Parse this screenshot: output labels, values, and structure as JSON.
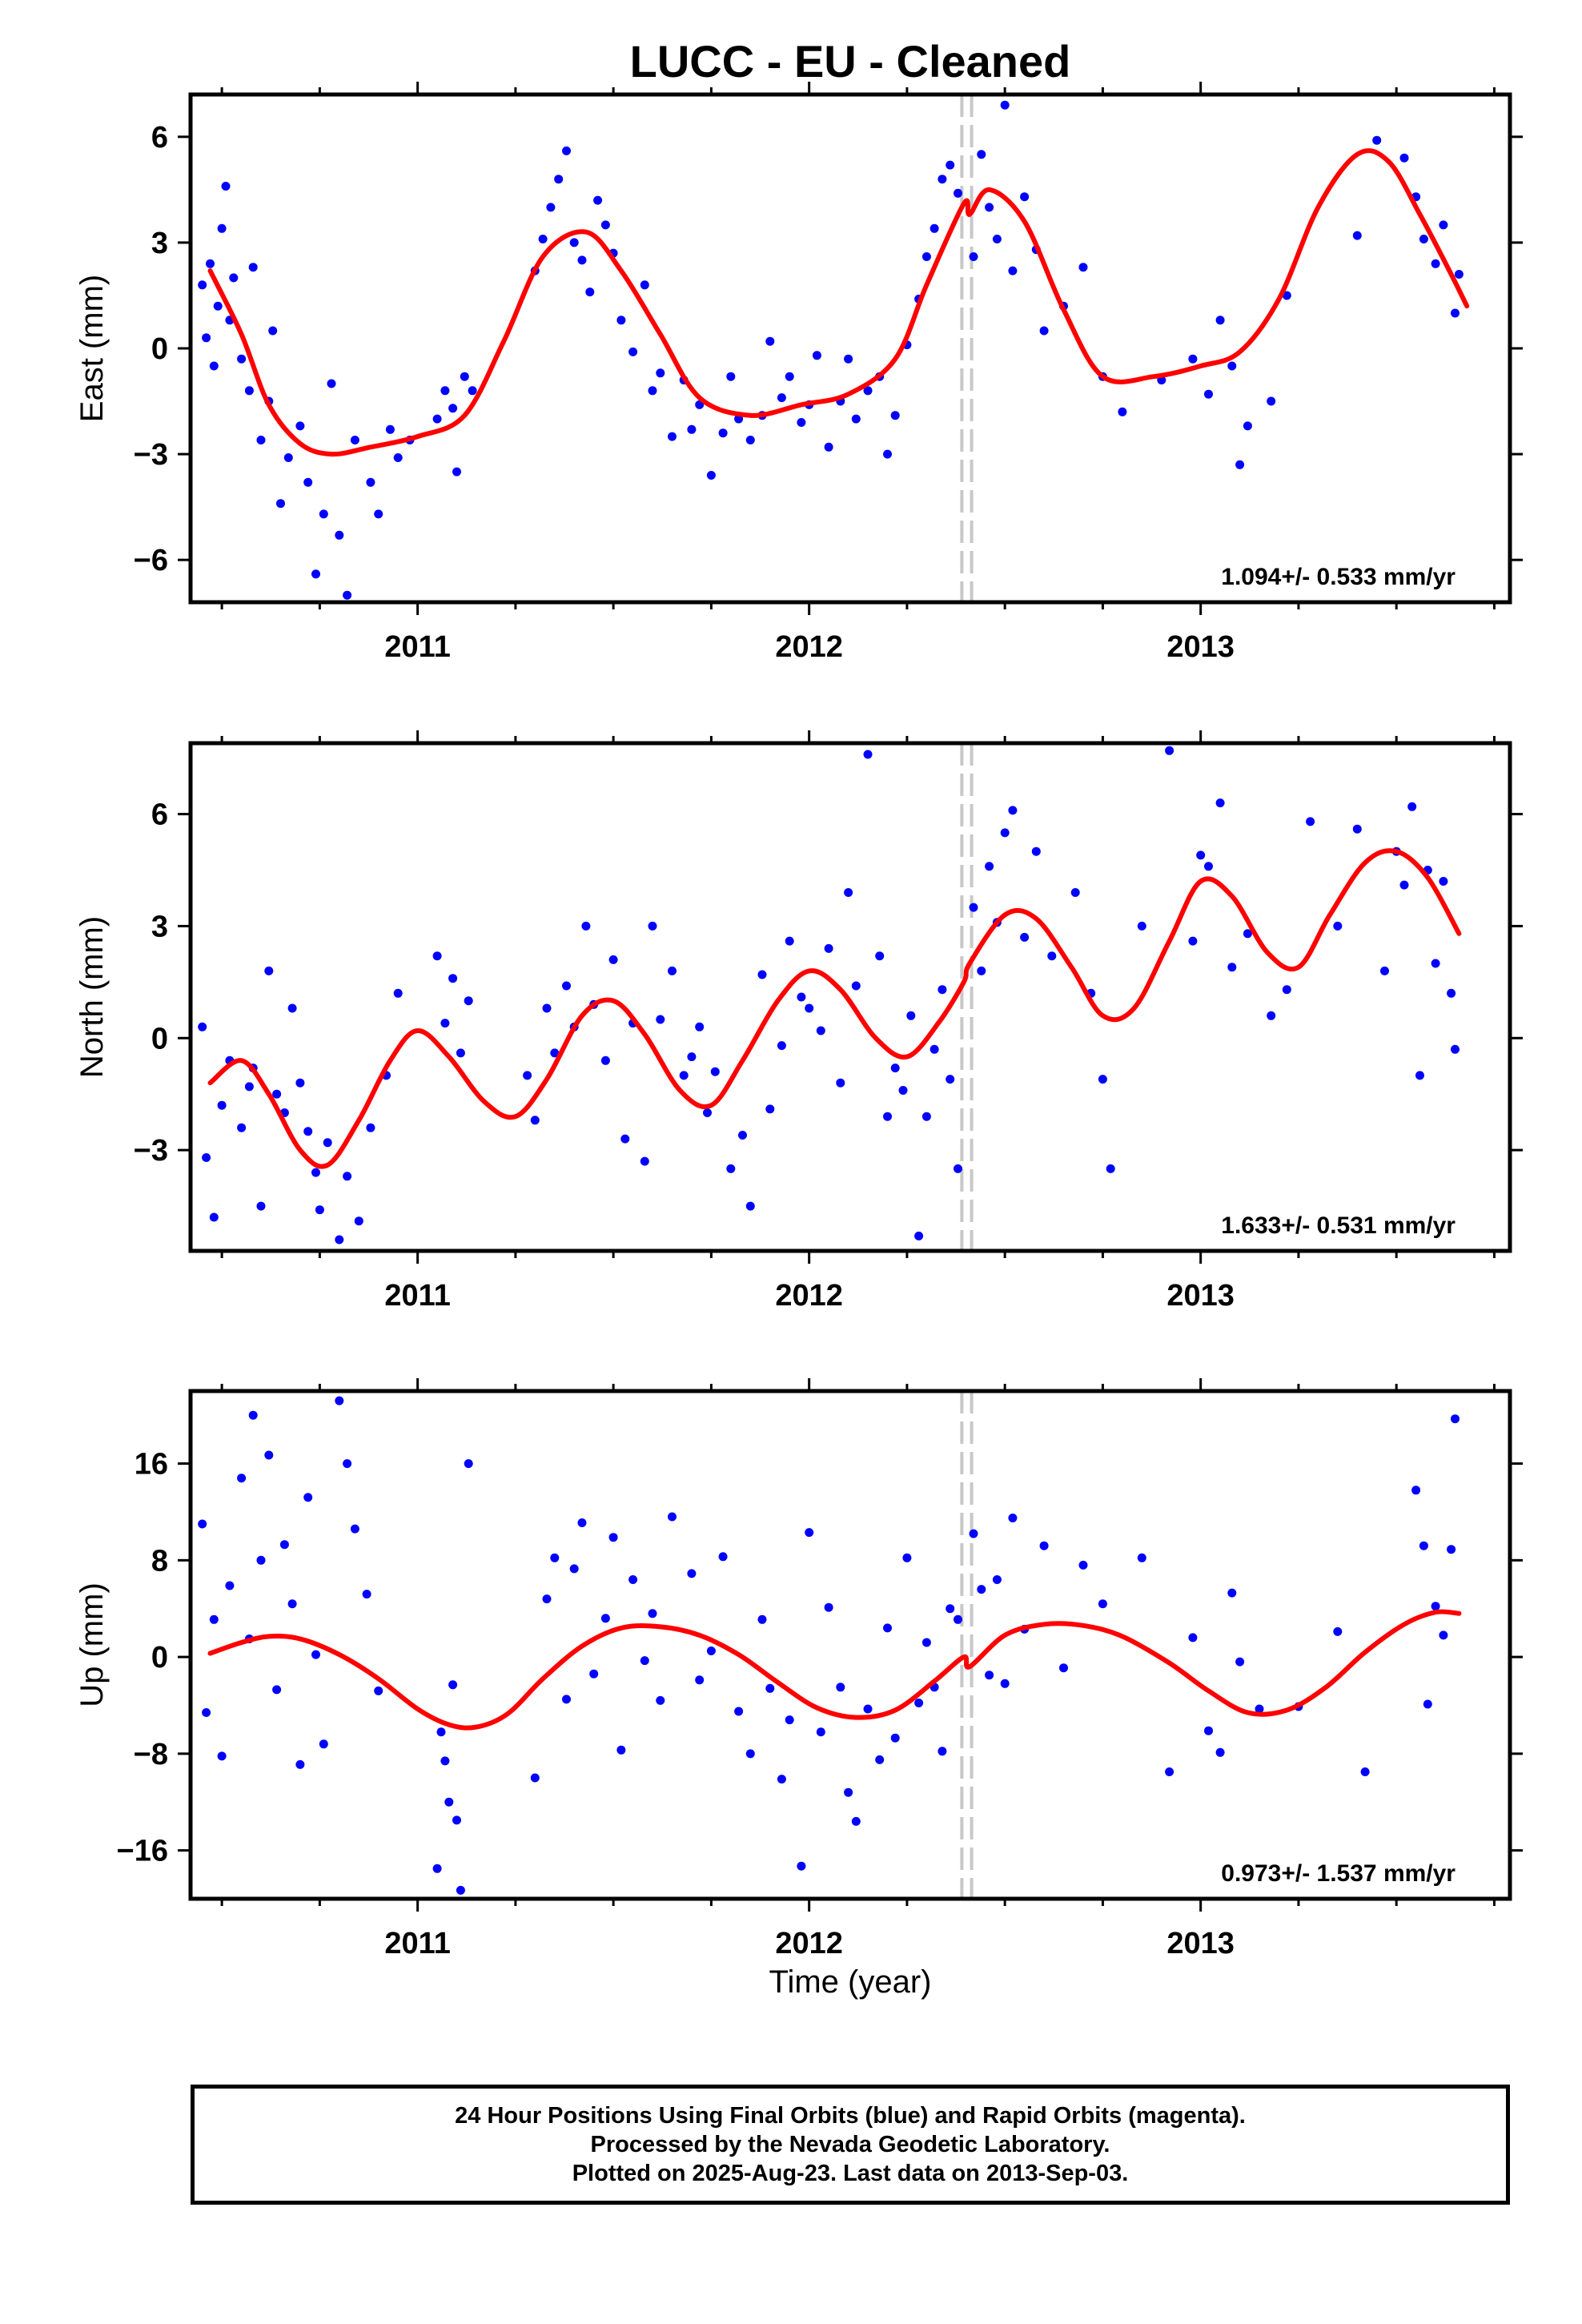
{
  "title": "LUCC  - EU - Cleaned",
  "xlabel": "Time (year)",
  "x_ticks": [
    "2011",
    "2012",
    "2013"
  ],
  "caption": {
    "line1": "24 Hour Positions Using Final Orbits (blue) and Rapid Orbits (magenta).",
    "line2": "Processed by the Nevada Geodetic Laboratory.",
    "line3": "Plotted on 2025-Aug-23. Last data on 2013-Sep-03."
  },
  "colors": {
    "points": "#0000ff",
    "fit": "#ff0000",
    "offset_lines": "#c8c8c8",
    "frame": "#000000"
  },
  "chart_data": [
    {
      "type": "scatter",
      "ylabel": "East (mm)",
      "xlim": [
        2010.42,
        2013.79
      ],
      "ylim": [
        -7.2,
        7.2
      ],
      "yticks": [
        -6,
        -3,
        0,
        3,
        6
      ],
      "rate_label": "1.094+/- 0.533 mm/yr",
      "offset_epochs": [
        2012.39,
        2012.415
      ],
      "fit": {
        "x": [
          2010.47,
          2010.55,
          2010.62,
          2010.7,
          2010.78,
          2010.88,
          2011.0,
          2011.12,
          2011.22,
          2011.32,
          2011.43,
          2011.52,
          2011.62,
          2011.72,
          2011.85,
          2011.98,
          2012.1,
          2012.22,
          2012.3,
          2012.395,
          2012.41,
          2012.46,
          2012.55,
          2012.65,
          2012.75,
          2012.88,
          2013.0,
          2013.1,
          2013.2,
          2013.3,
          2013.4,
          2013.48,
          2013.56,
          2013.64,
          2013.68
        ],
        "y": [
          2.2,
          0.4,
          -1.6,
          -2.7,
          -3.0,
          -2.8,
          -2.5,
          -1.9,
          0.2,
          2.6,
          3.3,
          2.2,
          0.4,
          -1.4,
          -1.9,
          -1.6,
          -1.3,
          -0.3,
          1.8,
          4.1,
          3.8,
          4.5,
          3.6,
          1.1,
          -0.8,
          -0.8,
          -0.5,
          -0.1,
          1.4,
          4.0,
          5.5,
          5.3,
          3.8,
          2.1,
          1.2
        ]
      },
      "points": {
        "x": [
          2010.45,
          2010.46,
          2010.47,
          2010.48,
          2010.49,
          2010.5,
          2010.51,
          2010.52,
          2010.53,
          2010.55,
          2010.57,
          2010.58,
          2010.6,
          2010.62,
          2010.63,
          2010.65,
          2010.67,
          2010.7,
          2010.72,
          2010.74,
          2010.76,
          2010.78,
          2010.8,
          2010.82,
          2010.84,
          2010.88,
          2010.9,
          2010.93,
          2010.95,
          2010.98,
          2011.05,
          2011.07,
          2011.09,
          2011.1,
          2011.12,
          2011.14,
          2011.3,
          2011.32,
          2011.34,
          2011.36,
          2011.38,
          2011.4,
          2011.42,
          2011.44,
          2011.46,
          2011.48,
          2011.5,
          2011.52,
          2011.55,
          2011.58,
          2011.6,
          2011.62,
          2011.65,
          2011.68,
          2011.7,
          2011.72,
          2011.75,
          2011.78,
          2011.8,
          2011.82,
          2011.85,
          2011.88,
          2011.9,
          2011.93,
          2011.95,
          2011.98,
          2012.0,
          2012.02,
          2012.05,
          2012.08,
          2012.1,
          2012.12,
          2012.15,
          2012.18,
          2012.2,
          2012.22,
          2012.25,
          2012.28,
          2012.3,
          2012.32,
          2012.34,
          2012.36,
          2012.38,
          2012.42,
          2012.44,
          2012.46,
          2012.48,
          2012.5,
          2012.52,
          2012.55,
          2012.58,
          2012.6,
          2012.65,
          2012.7,
          2012.75,
          2012.8,
          2012.9,
          2012.98,
          2013.02,
          2013.05,
          2013.08,
          2013.1,
          2013.12,
          2013.18,
          2013.22,
          2013.4,
          2013.45,
          2013.52,
          2013.55,
          2013.57,
          2013.6,
          2013.62,
          2013.65,
          2013.66
        ],
        "y": [
          1.8,
          0.3,
          2.4,
          -0.5,
          1.2,
          3.4,
          4.6,
          0.8,
          2.0,
          -0.3,
          -1.2,
          2.3,
          -2.6,
          -1.5,
          0.5,
          -4.4,
          -3.1,
          -2.2,
          -3.8,
          -6.4,
          -4.7,
          -1.0,
          -5.3,
          -7.0,
          -2.6,
          -3.8,
          -4.7,
          -2.3,
          -3.1,
          -2.6,
          -2.0,
          -1.2,
          -1.7,
          -3.5,
          -0.8,
          -1.2,
          2.2,
          3.1,
          4.0,
          4.8,
          5.6,
          3.0,
          2.5,
          1.6,
          4.2,
          3.5,
          2.7,
          0.8,
          -0.1,
          1.8,
          -1.2,
          -0.7,
          -2.5,
          -0.9,
          -2.3,
          -1.6,
          -3.6,
          -2.4,
          -0.8,
          -2.0,
          -2.6,
          -1.9,
          0.2,
          -1.4,
          -0.8,
          -2.1,
          -1.6,
          -0.2,
          -2.8,
          -1.5,
          -0.3,
          -2.0,
          -1.2,
          -0.8,
          -3.0,
          -1.9,
          0.1,
          1.4,
          2.6,
          3.4,
          4.8,
          5.2,
          4.4,
          2.6,
          5.5,
          4.0,
          3.1,
          6.9,
          2.2,
          4.3,
          2.8,
          0.5,
          1.2,
          2.3,
          -0.8,
          -1.8,
          -0.9,
          -0.3,
          -1.3,
          0.8,
          -0.5,
          -3.3,
          -2.2,
          -1.5,
          1.5,
          3.2,
          5.9,
          5.4,
          4.3,
          3.1,
          2.4,
          3.5,
          1.0,
          2.1
        ]
      }
    },
    {
      "type": "scatter",
      "ylabel": "North (mm)",
      "xlim": [
        2010.42,
        2013.79
      ],
      "ylim": [
        -5.7,
        7.9
      ],
      "yticks": [
        -3,
        0,
        3,
        6
      ],
      "rate_label": "1.633+/- 0.531 mm/yr",
      "offset_epochs": [
        2012.39,
        2012.415
      ],
      "fit": {
        "x": [
          2010.47,
          2010.55,
          2010.62,
          2010.7,
          2010.77,
          2010.85,
          2010.93,
          2011.0,
          2011.08,
          2011.17,
          2011.25,
          2011.33,
          2011.42,
          2011.5,
          2011.58,
          2011.67,
          2011.75,
          2011.83,
          2011.92,
          2012.0,
          2012.08,
          2012.17,
          2012.25,
          2012.33,
          2012.395,
          2012.41,
          2012.5,
          2012.58,
          2012.67,
          2012.75,
          2012.83,
          2012.92,
          2013.0,
          2013.08,
          2013.17,
          2013.25,
          2013.33,
          2013.42,
          2013.5,
          2013.58,
          2013.66
        ],
        "y": [
          -1.2,
          -0.6,
          -1.5,
          -3.0,
          -3.4,
          -2.2,
          -0.6,
          0.2,
          -0.5,
          -1.7,
          -2.1,
          -1.1,
          0.6,
          1.0,
          0.1,
          -1.4,
          -1.8,
          -0.6,
          1.0,
          1.8,
          1.3,
          0.0,
          -0.5,
          0.4,
          1.5,
          2.0,
          3.3,
          3.2,
          1.9,
          0.6,
          0.8,
          2.6,
          4.2,
          3.8,
          2.3,
          1.9,
          3.3,
          4.7,
          5.0,
          4.3,
          2.8
        ]
      },
      "points": {
        "x": [
          2010.45,
          2010.46,
          2010.48,
          2010.5,
          2010.52,
          2010.55,
          2010.57,
          2010.58,
          2010.6,
          2010.62,
          2010.64,
          2010.66,
          2010.68,
          2010.7,
          2010.72,
          2010.74,
          2010.75,
          2010.77,
          2010.8,
          2010.82,
          2010.85,
          2010.88,
          2010.92,
          2010.95,
          2011.05,
          2011.07,
          2011.09,
          2011.11,
          2011.13,
          2011.28,
          2011.3,
          2011.33,
          2011.35,
          2011.38,
          2011.4,
          2011.43,
          2011.45,
          2011.48,
          2011.5,
          2011.53,
          2011.55,
          2011.58,
          2011.6,
          2011.62,
          2011.65,
          2011.68,
          2011.7,
          2011.72,
          2011.74,
          2011.76,
          2011.8,
          2011.83,
          2011.85,
          2011.88,
          2011.9,
          2011.93,
          2011.95,
          2011.98,
          2012.0,
          2012.03,
          2012.05,
          2012.08,
          2012.1,
          2012.12,
          2012.15,
          2012.18,
          2012.2,
          2012.22,
          2012.24,
          2012.26,
          2012.28,
          2012.3,
          2012.32,
          2012.34,
          2012.36,
          2012.38,
          2012.42,
          2012.44,
          2012.46,
          2012.48,
          2012.5,
          2012.52,
          2012.55,
          2012.58,
          2012.62,
          2012.68,
          2012.72,
          2012.75,
          2012.77,
          2012.85,
          2012.92,
          2012.98,
          2013.0,
          2013.02,
          2013.05,
          2013.08,
          2013.12,
          2013.18,
          2013.22,
          2013.28,
          2013.35,
          2013.4,
          2013.47,
          2013.5,
          2013.52,
          2013.54,
          2013.56,
          2013.58,
          2013.6,
          2013.62,
          2013.64,
          2013.65
        ],
        "y": [
          0.3,
          -3.2,
          -4.8,
          -1.8,
          -0.6,
          -2.4,
          -1.3,
          -0.8,
          -4.5,
          1.8,
          -1.5,
          -2.0,
          0.8,
          -1.2,
          -2.5,
          -3.6,
          -4.6,
          -2.8,
          -5.4,
          -3.7,
          -4.9,
          -2.4,
          -1.0,
          1.2,
          2.2,
          0.4,
          1.6,
          -0.4,
          1.0,
          -1.0,
          -2.2,
          0.8,
          -0.4,
          1.4,
          0.3,
          3.0,
          0.9,
          -0.6,
          2.1,
          -2.7,
          0.4,
          -3.3,
          3.0,
          0.5,
          1.8,
          -1.0,
          -0.5,
          0.3,
          -2.0,
          -0.9,
          -3.5,
          -2.6,
          -4.5,
          1.7,
          -1.9,
          -0.2,
          2.6,
          1.1,
          0.8,
          0.2,
          2.4,
          -1.2,
          3.9,
          1.4,
          7.6,
          2.2,
          -2.1,
          -0.8,
          -1.4,
          0.6,
          -5.3,
          -2.1,
          -0.3,
          1.3,
          -1.1,
          -3.5,
          3.5,
          1.8,
          4.6,
          3.1,
          5.5,
          6.1,
          2.7,
          5.0,
          2.2,
          3.9,
          1.2,
          -1.1,
          -3.5,
          3.0,
          7.7,
          2.6,
          4.9,
          4.6,
          6.3,
          1.9,
          2.8,
          0.6,
          1.3,
          5.8,
          3.0,
          5.6,
          1.8,
          5.0,
          4.1,
          6.2,
          -1.0,
          4.5,
          2.0,
          4.2,
          1.2,
          -0.3
        ]
      }
    },
    {
      "type": "scatter",
      "ylabel": "Up (mm)",
      "xlim": [
        2010.42,
        2013.79
      ],
      "ylim": [
        -20,
        22
      ],
      "yticks": [
        -16,
        -8,
        0,
        8,
        16
      ],
      "rate_label": "0.973+/- 1.537 mm/yr",
      "offset_epochs": [
        2012.39,
        2012.415
      ],
      "fit": {
        "x": [
          2010.47,
          2010.55,
          2010.62,
          2010.7,
          2010.8,
          2010.9,
          2011.0,
          2011.08,
          2011.15,
          2011.23,
          2011.32,
          2011.42,
          2011.52,
          2011.62,
          2011.72,
          2011.82,
          2011.92,
          2012.02,
          2012.12,
          2012.22,
          2012.32,
          2012.395,
          2012.41,
          2012.5,
          2012.6,
          2012.7,
          2012.8,
          2012.92,
          2013.02,
          2013.12,
          2013.22,
          2013.32,
          2013.42,
          2013.52,
          2013.6,
          2013.66
        ],
        "y": [
          0.3,
          1.2,
          1.7,
          1.5,
          0.2,
          -1.8,
          -4.3,
          -5.6,
          -5.8,
          -4.7,
          -1.8,
          0.9,
          2.4,
          2.5,
          1.8,
          0.2,
          -2.1,
          -4.2,
          -5.0,
          -4.4,
          -2.0,
          0.0,
          -0.8,
          1.8,
          2.7,
          2.6,
          1.7,
          -0.5,
          -2.8,
          -4.6,
          -4.4,
          -2.5,
          0.4,
          2.7,
          3.7,
          3.6
        ]
      },
      "points": {
        "x": [
          2010.45,
          2010.46,
          2010.48,
          2010.5,
          2010.52,
          2010.55,
          2010.57,
          2010.58,
          2010.6,
          2010.62,
          2010.64,
          2010.66,
          2010.68,
          2010.7,
          2010.72,
          2010.74,
          2010.76,
          2010.8,
          2010.82,
          2010.84,
          2010.87,
          2010.9,
          2011.05,
          2011.06,
          2011.07,
          2011.08,
          2011.09,
          2011.1,
          2011.11,
          2011.13,
          2011.3,
          2011.33,
          2011.35,
          2011.38,
          2011.4,
          2011.42,
          2011.45,
          2011.48,
          2011.5,
          2011.52,
          2011.55,
          2011.58,
          2011.6,
          2011.62,
          2011.65,
          2011.7,
          2011.72,
          2011.75,
          2011.78,
          2011.82,
          2011.85,
          2011.88,
          2011.9,
          2011.93,
          2011.95,
          2011.98,
          2012.0,
          2012.03,
          2012.05,
          2012.08,
          2012.1,
          2012.12,
          2012.15,
          2012.18,
          2012.2,
          2012.22,
          2012.25,
          2012.28,
          2012.3,
          2012.32,
          2012.34,
          2012.36,
          2012.38,
          2012.42,
          2012.44,
          2012.46,
          2012.48,
          2012.5,
          2012.52,
          2012.55,
          2012.6,
          2012.65,
          2012.7,
          2012.75,
          2012.85,
          2012.92,
          2012.98,
          2013.02,
          2013.05,
          2013.08,
          2013.1,
          2013.15,
          2013.25,
          2013.35,
          2013.42,
          2013.55,
          2013.57,
          2013.58,
          2013.6,
          2013.62,
          2013.64,
          2013.65
        ],
        "y": [
          11,
          -4.6,
          3.1,
          -8.2,
          5.9,
          14.8,
          1.5,
          20,
          8,
          16.7,
          -2.7,
          9.3,
          4.4,
          -8.9,
          13.2,
          0.2,
          -7.2,
          21.2,
          16,
          10.6,
          5.2,
          -2.8,
          -17.5,
          -6.2,
          -8.6,
          -12,
          -2.3,
          -13.5,
          -19.3,
          16,
          -10,
          4.8,
          8.2,
          -3.5,
          7.3,
          11.1,
          -1.4,
          3.2,
          9.9,
          -7.7,
          6.4,
          -0.3,
          3.6,
          -3.6,
          11.6,
          6.9,
          -1.9,
          0.5,
          8.3,
          -4.5,
          -8,
          3.1,
          -2.6,
          -10.1,
          -5.2,
          -17.3,
          10.3,
          -6.2,
          4.1,
          -2.5,
          -11.2,
          -13.6,
          -4.3,
          -8.5,
          2.4,
          -6.7,
          8.2,
          -3.8,
          1.2,
          -2.5,
          -7.8,
          4,
          3.1,
          10.2,
          5.6,
          -1.5,
          6.4,
          -2.2,
          11.5,
          2.3,
          9.2,
          -0.9,
          7.6,
          4.4,
          8.2,
          -9.5,
          1.6,
          -6.1,
          -7.9,
          5.3,
          -0.4,
          -4.3,
          -4.1,
          2.1,
          -9.5,
          13.8,
          9.2,
          -3.9,
          4.2,
          1.8,
          8.9,
          19.7
        ]
      }
    }
  ]
}
